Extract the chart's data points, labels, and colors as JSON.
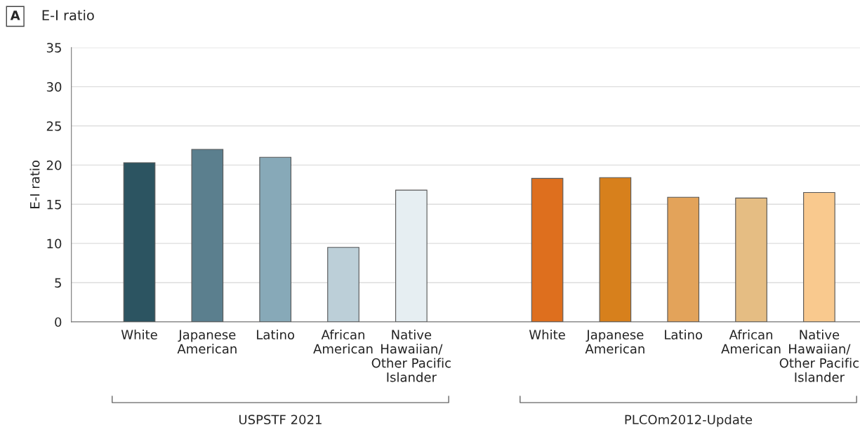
{
  "chart_data": {
    "type": "bar",
    "title": "E-I ratio",
    "ylabel": "E-I ratio",
    "categories": [
      "White",
      "Japanese\nAmerican",
      "Latino",
      "African\nAmerican",
      "Native\nHawaiian/\nOther Pacific\nIslander",
      null,
      "White",
      "Japanese\nAmerican",
      "Latino",
      "African\nAmerican",
      "Native\nHawaiian/\nOther Pacific\nIslander"
    ],
    "values": [
      20.3,
      22.0,
      21.0,
      9.5,
      16.8,
      null,
      18.3,
      18.4,
      15.9,
      15.8,
      16.5
    ],
    "colors": [
      "#2c5461",
      "#5b7f8e",
      "#87a9b8",
      "#bccfd8",
      "#e6eef2",
      null,
      "#de6f1e",
      "#d7801c",
      "#e3a35a",
      "#e5bd83",
      "#f9c98e"
    ],
    "ylim": [
      0,
      35
    ],
    "yticks": [
      0,
      5,
      10,
      15,
      20,
      25,
      30,
      35
    ],
    "grid": "y",
    "annotations": [
      "A",
      "USPSTF 2021",
      "PLCOm2012-Update"
    ]
  }
}
